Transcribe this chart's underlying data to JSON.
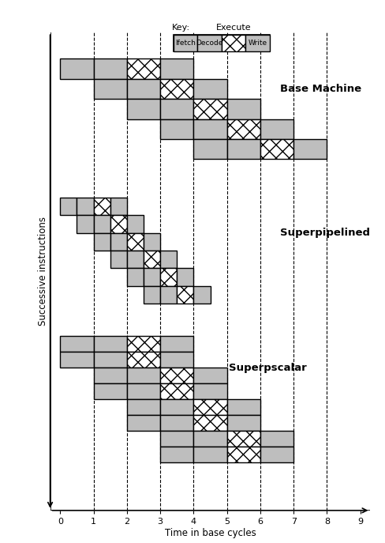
{
  "xlabel": "Time in base cycles",
  "ylabel": "Successive instructions",
  "gray_color": "#BEBEBE",
  "hatch_pattern": "xx",
  "base_machine_label": "Base Machine",
  "superpipelined_label": "Superpipelined",
  "superscalar_label": "Superpscalar",
  "key_label": "Key:",
  "execute_label": "Execute",
  "stage_labels": [
    "Ifetch",
    "Decode",
    "",
    "Write"
  ],
  "xticks": [
    0,
    1,
    2,
    3,
    4,
    5,
    6,
    7,
    8,
    9
  ],
  "dashed_lines": [
    1,
    2,
    3,
    4,
    5,
    6,
    7,
    8
  ],
  "fig_width": 4.89,
  "fig_height": 6.87,
  "dpi": 100
}
